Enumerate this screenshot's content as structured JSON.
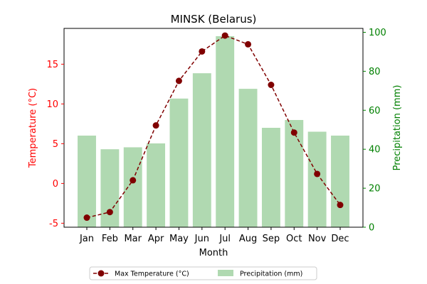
{
  "chart_data": {
    "type": "bar",
    "title": "MINSK (Belarus)",
    "xlabel": "Month",
    "ylabel_left": "Temperature (°C)",
    "ylabel_right": "Precipitation (mm)",
    "categories": [
      "Jan",
      "Feb",
      "Mar",
      "Apr",
      "May",
      "Jun",
      "Jul",
      "Aug",
      "Sep",
      "Oct",
      "Nov",
      "Dec"
    ],
    "left_axis": {
      "ylim": [
        -5.5,
        19.5
      ],
      "ticks": [
        -5,
        0,
        5,
        10,
        15
      ],
      "color": "#ff0000"
    },
    "right_axis": {
      "ylim": [
        0,
        102
      ],
      "ticks": [
        0,
        20,
        40,
        60,
        80,
        100
      ],
      "color": "#008000"
    },
    "series": [
      {
        "name": "Max Temperature (°C)",
        "type": "line",
        "axis": "left",
        "color": "#800000",
        "style": "dashed-with-markers",
        "values": [
          -4.3,
          -3.6,
          0.4,
          7.3,
          12.9,
          16.6,
          18.6,
          17.5,
          12.4,
          6.4,
          1.2,
          -2.7
        ]
      },
      {
        "name": "Precipitation (mm)",
        "type": "bar",
        "axis": "right",
        "color": "#b0d9b1",
        "values": [
          47,
          40,
          41,
          43,
          66,
          79,
          98,
          71,
          51,
          55,
          49,
          47
        ]
      }
    ],
    "legend": {
      "placement": "bottom-center",
      "columns": 2
    }
  }
}
